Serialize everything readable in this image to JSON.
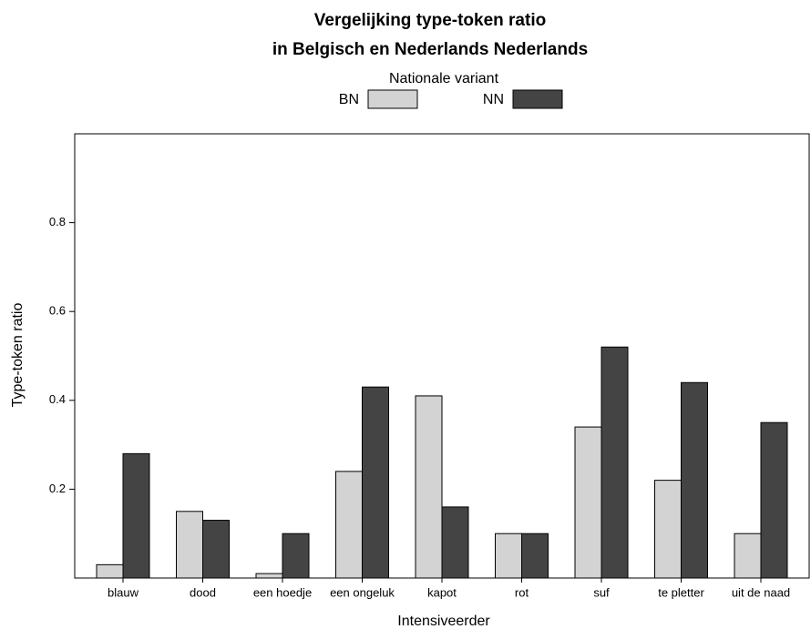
{
  "chart_data": {
    "type": "bar",
    "title": [
      "Vergelijking type-token ratio",
      "in Belgisch en Nederlands Nederlands"
    ],
    "legend_title": "Nationale variant",
    "x_label": "Intensiveerder",
    "y_label": "Type-token ratio",
    "categories": [
      "blauw",
      "dood",
      "een hoedje",
      "een ongeluk",
      "kapot",
      "rot",
      "suf",
      "te pletter",
      "uit de naad"
    ],
    "series": [
      {
        "name": "BN",
        "color": "#d3d3d3",
        "values": [
          0.03,
          0.15,
          0.01,
          0.24,
          0.41,
          0.1,
          0.34,
          0.22,
          0.1
        ]
      },
      {
        "name": "NN",
        "color": "#444444",
        "values": [
          0.28,
          0.13,
          0.1,
          0.43,
          0.16,
          0.1,
          0.52,
          0.44,
          0.35
        ]
      }
    ],
    "ylim": [
      0,
      1.0
    ],
    "yticks": [
      0.2,
      0.4,
      0.6,
      0.8
    ]
  }
}
